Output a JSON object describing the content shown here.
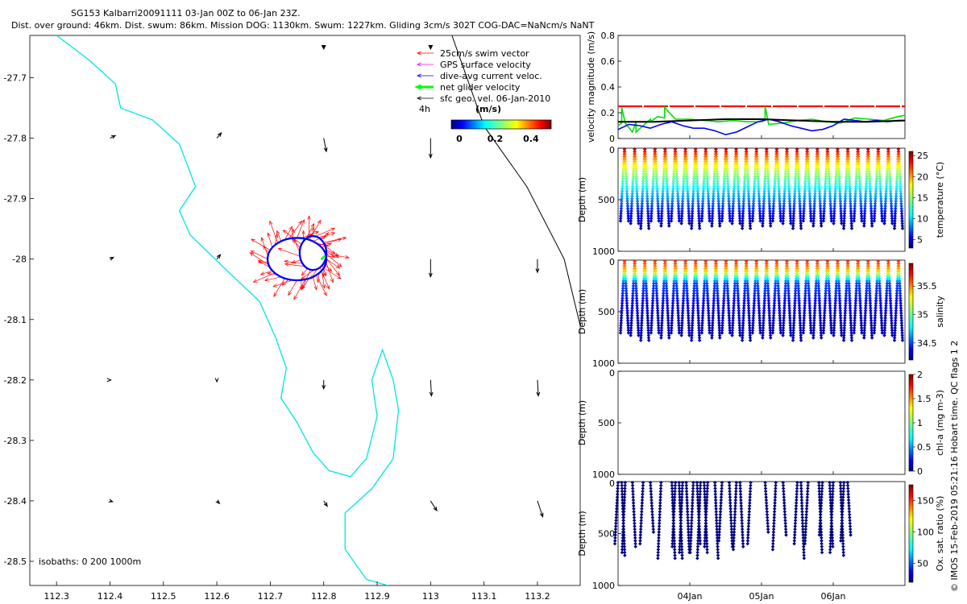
{
  "header": {
    "title_line1": "SG153 Kalbarri20091111 03-Jan 00Z to 06-Jan 23Z.",
    "title_line2": "Dist. over ground: 46km. Dist. swum: 86km. Mission DOG: 1130km. Swum: 1227km. Gliding 3cm/s 302T COG-DAC=NaNcm/s NaNT"
  },
  "credit": "© IMOS 15-Feb-2019 05:21:16 Hobart time. QC flags 1  2",
  "colors": {
    "swim": "#ff0000",
    "gps": "#ff00ff",
    "dac": "#0000ff",
    "net": "#00ff00",
    "geo": "#000000",
    "coast": "#00e5e5",
    "isobath": "#000000"
  },
  "chart_data": [
    {
      "type": "map",
      "x_ticks": [
        "112.3",
        "112.4",
        "112.5",
        "112.6",
        "112.7",
        "112.8",
        "112.9",
        "113",
        "113.1",
        "113.2"
      ],
      "y_ticks": [
        "-27.7",
        "-27.8",
        "-27.9",
        "-28",
        "-28.1",
        "-28.2",
        "-28.3",
        "-28.4",
        "-28.5"
      ],
      "xlim": [
        112.25,
        113.28
      ],
      "ylim": [
        -28.54,
        -27.63
      ],
      "legend": {
        "placement": "top-right",
        "entries": [
          "25cm/s swim vector",
          "GPS surface velocity",
          "dive-avg current veloc.",
          "net glider velocity",
          "sfc geo. vel. 06-Jan-2010"
        ],
        "note": "4h",
        "colorbar_label": "(m/s)",
        "colorbar_ticks": [
          "0",
          "0.2",
          "0.4"
        ]
      },
      "isobath_label": "isobaths: 0   200  1000m",
      "coastline": [
        [
          112.3,
          -27.63
        ],
        [
          112.36,
          -27.67
        ],
        [
          112.41,
          -27.71
        ],
        [
          112.42,
          -27.75
        ],
        [
          112.48,
          -27.77
        ],
        [
          112.53,
          -27.81
        ],
        [
          112.56,
          -27.88
        ],
        [
          112.53,
          -27.92
        ],
        [
          112.55,
          -27.96
        ],
        [
          112.62,
          -28.02
        ],
        [
          112.68,
          -28.07
        ],
        [
          112.71,
          -28.13
        ],
        [
          112.73,
          -28.18
        ],
        [
          112.72,
          -28.23
        ],
        [
          112.75,
          -28.27
        ],
        [
          112.78,
          -28.32
        ],
        [
          112.81,
          -28.35
        ],
        [
          112.85,
          -28.36
        ],
        [
          112.88,
          -28.33
        ],
        [
          112.9,
          -28.26
        ],
        [
          112.89,
          -28.2
        ],
        [
          112.91,
          -28.15
        ],
        [
          112.93,
          -28.2
        ],
        [
          112.94,
          -28.25
        ],
        [
          112.93,
          -28.33
        ],
        [
          112.89,
          -28.38
        ],
        [
          112.84,
          -28.42
        ],
        [
          112.84,
          -28.48
        ],
        [
          112.88,
          -28.53
        ],
        [
          112.92,
          -28.54
        ]
      ],
      "isobath_1000": [
        [
          113.04,
          -27.63
        ],
        [
          113.1,
          -27.78
        ],
        [
          113.18,
          -27.88
        ],
        [
          113.25,
          -28.0
        ],
        [
          113.28,
          -28.11
        ]
      ],
      "geo_vectors": [
        {
          "lon": 112.4,
          "lat": -27.8,
          "u": 0.06,
          "v": 0.03
        },
        {
          "lon": 112.6,
          "lat": -27.8,
          "u": 0.05,
          "v": 0.06
        },
        {
          "lon": 112.8,
          "lat": -27.8,
          "u": 0.03,
          "v": -0.15
        },
        {
          "lon": 113.0,
          "lat": -27.8,
          "u": 0.0,
          "v": -0.22
        },
        {
          "lon": 112.4,
          "lat": -28.0,
          "u": 0.04,
          "v": 0.02
        },
        {
          "lon": 112.6,
          "lat": -28.0,
          "u": 0.04,
          "v": 0.05
        },
        {
          "lon": 113.0,
          "lat": -28.0,
          "u": 0.0,
          "v": -0.2
        },
        {
          "lon": 113.2,
          "lat": -28.0,
          "u": 0.0,
          "v": -0.15
        },
        {
          "lon": 112.4,
          "lat": -28.2,
          "u": 0.01,
          "v": 0.0
        },
        {
          "lon": 112.6,
          "lat": -28.2,
          "u": 0.0,
          "v": -0.02
        },
        {
          "lon": 112.8,
          "lat": -28.2,
          "u": 0.0,
          "v": -0.1
        },
        {
          "lon": 113.0,
          "lat": -28.2,
          "u": 0.01,
          "v": -0.18
        },
        {
          "lon": 113.2,
          "lat": -28.2,
          "u": 0.01,
          "v": -0.18
        },
        {
          "lon": 112.4,
          "lat": -28.4,
          "u": 0.03,
          "v": -0.01
        },
        {
          "lon": 112.6,
          "lat": -28.4,
          "u": 0.03,
          "v": -0.03
        },
        {
          "lon": 112.8,
          "lat": -28.4,
          "u": 0.04,
          "v": -0.06
        },
        {
          "lon": 113.0,
          "lat": -28.4,
          "u": 0.07,
          "v": -0.11
        },
        {
          "lon": 113.2,
          "lat": -28.4,
          "u": 0.06,
          "v": -0.18
        }
      ],
      "geo_marks": [
        {
          "lon": 112.8,
          "lat": -27.65
        },
        {
          "lon": 113.0,
          "lat": -27.65
        }
      ],
      "track_loops": [
        {
          "lon": 112.75,
          "lat": -28.0,
          "rlon": 0.055,
          "rlat": 0.035
        },
        {
          "lon": 112.78,
          "lat": -27.99,
          "rlon": 0.025,
          "rlat": 0.028
        }
      ]
    },
    {
      "type": "line",
      "ylabel": "velocity magnitude (m/s)",
      "ylim": [
        0,
        0.8
      ],
      "y_ticks": [
        "0",
        "0.2",
        "0.4",
        "0.6",
        "0.8"
      ],
      "x_ticks": [
        "04Jan",
        "05Jan",
        "06Jan"
      ],
      "xlim_days": [
        3.0,
        7.0
      ],
      "series": [
        {
          "name": "swim",
          "color": "#ff0000",
          "x": [
            3.0,
            7.0
          ],
          "y": [
            0.25,
            0.25
          ]
        },
        {
          "name": "net",
          "color": "#00e000",
          "x": [
            3.0,
            3.05,
            3.05,
            3.1,
            3.2,
            3.25,
            3.25,
            3.45,
            3.45,
            3.55,
            3.65,
            3.65,
            3.8,
            4.0,
            4.2,
            4.4,
            4.6,
            4.8,
            5.0,
            5.05,
            5.05,
            5.1,
            5.3,
            5.5,
            5.7,
            5.9,
            6.1,
            6.3,
            6.5,
            6.7,
            6.9,
            7.0
          ],
          "y": [
            0.1,
            0.12,
            0.24,
            0.12,
            0.05,
            0.13,
            0.05,
            0.15,
            0.13,
            0.17,
            0.16,
            0.24,
            0.15,
            0.15,
            0.14,
            0.13,
            0.14,
            0.13,
            0.13,
            0.14,
            0.25,
            0.11,
            0.12,
            0.14,
            0.15,
            0.13,
            0.12,
            0.16,
            0.15,
            0.14,
            0.17,
            0.18
          ]
        },
        {
          "name": "dac",
          "color": "#0000ff",
          "x": [
            3.0,
            3.15,
            3.3,
            3.45,
            3.6,
            3.75,
            3.9,
            4.05,
            4.2,
            4.35,
            4.5,
            4.65,
            4.8,
            4.95,
            5.1,
            5.25,
            5.4,
            5.55,
            5.7,
            5.85,
            6.0,
            6.15,
            6.3,
            6.45,
            6.6,
            6.75,
            6.9,
            7.0
          ],
          "y": [
            0.07,
            0.11,
            0.1,
            0.08,
            0.11,
            0.13,
            0.1,
            0.08,
            0.08,
            0.06,
            0.03,
            0.05,
            0.09,
            0.13,
            0.15,
            0.13,
            0.1,
            0.08,
            0.06,
            0.07,
            0.1,
            0.15,
            0.14,
            0.13,
            0.14,
            0.13,
            0.14,
            0.14
          ]
        },
        {
          "name": "geo",
          "color": "#000000",
          "x": [
            3.0,
            3.5,
            4.0,
            4.5,
            5.0,
            5.5,
            6.0,
            6.5,
            7.0
          ],
          "y": [
            0.13,
            0.13,
            0.14,
            0.15,
            0.15,
            0.14,
            0.13,
            0.13,
            0.14
          ]
        }
      ]
    },
    {
      "type": "scatter",
      "ylabel": "Depth (m)",
      "ylim": [
        1000,
        0
      ],
      "y_ticks": [
        "0",
        "500",
        "1000"
      ],
      "colorbar_label": "temperature (°C)",
      "colorbar_ticks": [
        "5",
        "10",
        "15",
        "20",
        "25"
      ],
      "clim": [
        3,
        26
      ],
      "dives": 28,
      "max_depth_m": 780
    },
    {
      "type": "scatter",
      "ylabel": "Depth (m)",
      "ylim": [
        1000,
        0
      ],
      "y_ticks": [
        "0",
        "500",
        "1000"
      ],
      "colorbar_label": "salinity",
      "colorbar_ticks": [
        "34.5",
        "35",
        "35.5"
      ],
      "clim": [
        34.2,
        35.9
      ],
      "dives": 28,
      "max_depth_m": 780
    },
    {
      "type": "scatter",
      "ylabel": "Depth (m)",
      "ylim": [
        1000,
        0
      ],
      "y_ticks": [
        "0",
        "500",
        "1000"
      ],
      "colorbar_label": "chl-a (mg m-3)",
      "colorbar_ticks": [
        "0",
        "0.5",
        "1",
        "1.5",
        "2"
      ],
      "clim": [
        0,
        2
      ]
    },
    {
      "type": "scatter",
      "ylabel": "Depth (m)",
      "ylim": [
        1000,
        0
      ],
      "y_ticks": [
        "0",
        "500",
        "1000"
      ],
      "x_ticks": [
        "04Jan",
        "05Jan",
        "06Jan"
      ],
      "colorbar_label": "Ox. sat. ratio (%)",
      "colorbar_ticks": [
        "50",
        "100",
        "150"
      ],
      "clim": [
        20,
        175
      ],
      "dive_days": [
        3.0,
        3.05,
        3.1,
        3.2,
        3.35,
        3.45,
        3.6,
        3.75,
        3.8,
        3.85,
        3.9,
        3.95,
        4.05,
        4.1,
        4.15,
        4.2,
        4.25,
        4.35,
        4.45,
        4.55,
        4.65,
        4.7,
        4.85,
        5.05,
        5.2,
        5.3,
        5.5,
        5.55,
        5.65,
        5.8,
        5.85,
        5.95,
        6.0,
        6.1,
        6.15,
        6.2
      ],
      "dive_depths_m": [
        600,
        730,
        700,
        640,
        620,
        500,
        740,
        760,
        640,
        740,
        700,
        700,
        700,
        600,
        740,
        700,
        640,
        740,
        580,
        640,
        680,
        640,
        620,
        500,
        680,
        540,
        620,
        760,
        600,
        700,
        540,
        640,
        700,
        720,
        580,
        540
      ],
      "point_color": "#00007f"
    }
  ]
}
